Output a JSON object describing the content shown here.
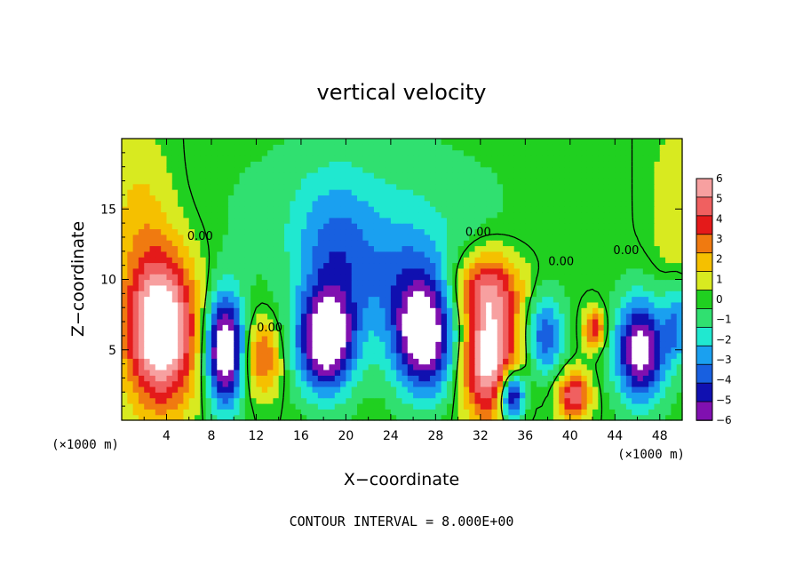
{
  "chart_data": {
    "type": "heatmap",
    "title": "vertical velocity",
    "xlabel": "X−coordinate",
    "ylabel": "Z−coordinate",
    "x_unit_label": "(×1000 m)",
    "y_unit_label": "(×1000 m)",
    "footer": "CONTOUR INTERVAL = 8.000E+00",
    "xlim": [
      0,
      50
    ],
    "ylim": [
      0,
      20
    ],
    "x_ticks": [
      "4",
      "8",
      "12",
      "16",
      "20",
      "24",
      "28",
      "32",
      "36",
      "40",
      "44",
      "48"
    ],
    "y_ticks": [
      "5",
      "10",
      "15"
    ],
    "colorbar": {
      "min": -6,
      "max": 6,
      "labels": [
        "6",
        "5",
        "4",
        "3",
        "2",
        "1",
        "0",
        "−1",
        "−2",
        "−3",
        "−4",
        "−5",
        "−6"
      ],
      "colors": [
        "#f7a0a0",
        "#f06060",
        "#e41a1a",
        "#f07a10",
        "#f5c000",
        "#d8ea20",
        "#20d020",
        "#30e070",
        "#20e8d0",
        "#1aa0f0",
        "#1860e0",
        "#1010b0",
        "#8010b0"
      ]
    },
    "contour_labels": [
      {
        "text": "0.00",
        "x": 7.0,
        "z": 12.8
      },
      {
        "text": "0.00",
        "x": 13.2,
        "z": 6.3
      },
      {
        "text": "0.00",
        "x": 31.8,
        "z": 13.1
      },
      {
        "text": "0.00",
        "x": 39.2,
        "z": 11.0
      },
      {
        "text": "0.00",
        "x": 45.0,
        "z": 11.8
      }
    ],
    "features": [
      {
        "x": 3.5,
        "z": 6.5,
        "w": 8,
        "sx": 2.2,
        "sz": 3.8
      },
      {
        "x": 9.2,
        "z": 5.0,
        "w": -8,
        "sx": 1.2,
        "sz": 2.8
      },
      {
        "x": 12.5,
        "z": 4.5,
        "w": 3.5,
        "sx": 1.2,
        "sz": 1.8
      },
      {
        "x": 18.2,
        "z": 5.5,
        "w": -7,
        "sx": 1.8,
        "sz": 2.5
      },
      {
        "x": 19.0,
        "z": 11.0,
        "w": -3,
        "sx": 2.5,
        "sz": 4.0
      },
      {
        "x": 27.0,
        "z": 5.8,
        "w": -7,
        "sx": 2.0,
        "sz": 2.8
      },
      {
        "x": 25.5,
        "z": 10.0,
        "w": -2.5,
        "sx": 3.0,
        "sz": 3.0
      },
      {
        "x": 32.8,
        "z": 4.5,
        "w": 7,
        "sx": 1.8,
        "sz": 3.0
      },
      {
        "x": 32.5,
        "z": 9.5,
        "w": 4,
        "sx": 2.2,
        "sz": 1.8
      },
      {
        "x": 34.8,
        "z": 1.8,
        "w": -7,
        "sx": 0.8,
        "sz": 1.3
      },
      {
        "x": 37.8,
        "z": 6.0,
        "w": -4,
        "sx": 1.2,
        "sz": 2.0
      },
      {
        "x": 40.3,
        "z": 1.8,
        "w": 5,
        "sx": 1.0,
        "sz": 1.2
      },
      {
        "x": 42.2,
        "z": 6.5,
        "w": 4,
        "sx": 0.7,
        "sz": 1.0
      },
      {
        "x": 46.3,
        "z": 5.0,
        "w": -7,
        "sx": 1.6,
        "sz": 2.5
      },
      {
        "x": 49.5,
        "z": 7.0,
        "w": -3,
        "sx": 0.8,
        "sz": 2.0
      },
      {
        "x": 1.5,
        "z": 15.0,
        "w": 1.5,
        "sx": 2.0,
        "sz": 4.0
      },
      {
        "x": 49.5,
        "z": 15.0,
        "w": 1.3,
        "sx": 1.5,
        "sz": 4.0
      },
      {
        "x": 22.0,
        "z": 15.0,
        "w": -1.2,
        "sx": 9.0,
        "sz": 4.0
      }
    ]
  }
}
